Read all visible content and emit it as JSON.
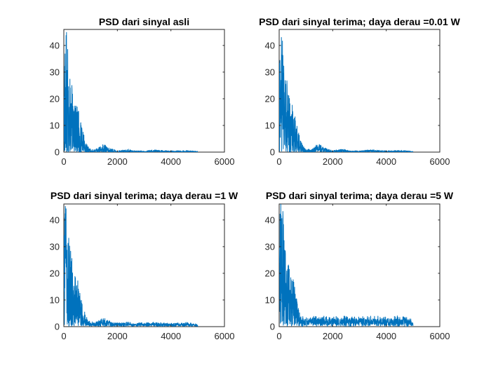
{
  "figure": {
    "background": "#ffffff",
    "line_color": "#0072bd"
  },
  "chart_data": [
    {
      "type": "line",
      "title": "PSD dari sinyal asli",
      "xlim": [
        0,
        6000
      ],
      "ylim": [
        0,
        46
      ],
      "xticks": [
        0,
        2000,
        4000,
        6000
      ],
      "yticks": [
        0,
        10,
        20,
        30,
        40
      ],
      "xlabel": "",
      "ylabel": "",
      "grid": false,
      "series": [
        {
          "x_range": [
            0,
            5000
          ],
          "envelope": [
            {
              "x": 0,
              "y": 34
            },
            {
              "x": 50,
              "y": 44
            },
            {
              "x": 100,
              "y": 45
            },
            {
              "x": 150,
              "y": 40
            },
            {
              "x": 200,
              "y": 30
            },
            {
              "x": 300,
              "y": 25
            },
            {
              "x": 400,
              "y": 20
            },
            {
              "x": 500,
              "y": 17
            },
            {
              "x": 600,
              "y": 13
            },
            {
              "x": 700,
              "y": 8
            },
            {
              "x": 800,
              "y": 4
            },
            {
              "x": 900,
              "y": 2
            },
            {
              "x": 1000,
              "y": 1
            },
            {
              "x": 1200,
              "y": 1
            },
            {
              "x": 1400,
              "y": 2.5
            },
            {
              "x": 1500,
              "y": 2.8
            },
            {
              "x": 1700,
              "y": 1.5
            },
            {
              "x": 2000,
              "y": 0.5
            },
            {
              "x": 2400,
              "y": 1
            },
            {
              "x": 2600,
              "y": 0.5
            },
            {
              "x": 3000,
              "y": 0.4
            },
            {
              "x": 3400,
              "y": 0.8
            },
            {
              "x": 4000,
              "y": 0.4
            },
            {
              "x": 4600,
              "y": 0.6
            },
            {
              "x": 5000,
              "y": 0.2
            }
          ],
          "noise_floor": 0.1
        }
      ]
    },
    {
      "type": "line",
      "title": "PSD dari sinyal terima; daya derau =0.01 W",
      "xlim": [
        0,
        6000
      ],
      "ylim": [
        0,
        46
      ],
      "xticks": [
        0,
        2000,
        4000,
        6000
      ],
      "yticks": [
        0,
        10,
        20,
        30,
        40
      ],
      "xlabel": "",
      "ylabel": "",
      "grid": false,
      "series": [
        {
          "x_range": [
            0,
            5000
          ],
          "envelope": [
            {
              "x": 0,
              "y": 34
            },
            {
              "x": 50,
              "y": 44
            },
            {
              "x": 100,
              "y": 45
            },
            {
              "x": 150,
              "y": 40
            },
            {
              "x": 200,
              "y": 30
            },
            {
              "x": 300,
              "y": 25
            },
            {
              "x": 400,
              "y": 20
            },
            {
              "x": 500,
              "y": 17
            },
            {
              "x": 600,
              "y": 13
            },
            {
              "x": 700,
              "y": 8
            },
            {
              "x": 800,
              "y": 4
            },
            {
              "x": 900,
              "y": 2
            },
            {
              "x": 1000,
              "y": 1
            },
            {
              "x": 1200,
              "y": 1
            },
            {
              "x": 1400,
              "y": 2.5
            },
            {
              "x": 1500,
              "y": 2.8
            },
            {
              "x": 1700,
              "y": 1.5
            },
            {
              "x": 2000,
              "y": 0.5
            },
            {
              "x": 2400,
              "y": 1
            },
            {
              "x": 2600,
              "y": 0.5
            },
            {
              "x": 3000,
              "y": 0.4
            },
            {
              "x": 3400,
              "y": 0.8
            },
            {
              "x": 4000,
              "y": 0.4
            },
            {
              "x": 4600,
              "y": 0.6
            },
            {
              "x": 5000,
              "y": 0.2
            }
          ],
          "noise_floor": 0.15
        }
      ]
    },
    {
      "type": "line",
      "title": "PSD dari sinyal terima; daya derau =1 W",
      "xlim": [
        0,
        6000
      ],
      "ylim": [
        0,
        46
      ],
      "xticks": [
        0,
        2000,
        4000,
        6000
      ],
      "yticks": [
        0,
        10,
        20,
        30,
        40
      ],
      "xlabel": "",
      "ylabel": "",
      "grid": false,
      "series": [
        {
          "x_range": [
            0,
            5000
          ],
          "envelope": [
            {
              "x": 0,
              "y": 34
            },
            {
              "x": 50,
              "y": 44
            },
            {
              "x": 100,
              "y": 45
            },
            {
              "x": 150,
              "y": 40
            },
            {
              "x": 200,
              "y": 30
            },
            {
              "x": 300,
              "y": 25
            },
            {
              "x": 400,
              "y": 20
            },
            {
              "x": 500,
              "y": 17
            },
            {
              "x": 600,
              "y": 13
            },
            {
              "x": 700,
              "y": 8
            },
            {
              "x": 800,
              "y": 4
            },
            {
              "x": 900,
              "y": 2.5
            },
            {
              "x": 1000,
              "y": 1.5
            },
            {
              "x": 1200,
              "y": 1.5
            },
            {
              "x": 1400,
              "y": 2.5
            },
            {
              "x": 1500,
              "y": 2.8
            },
            {
              "x": 1700,
              "y": 1.8
            },
            {
              "x": 2000,
              "y": 1
            },
            {
              "x": 2400,
              "y": 1.3
            },
            {
              "x": 2600,
              "y": 1
            },
            {
              "x": 3000,
              "y": 1
            },
            {
              "x": 3400,
              "y": 1.2
            },
            {
              "x": 4000,
              "y": 0.9
            },
            {
              "x": 4600,
              "y": 1.1
            },
            {
              "x": 5000,
              "y": 0.5
            }
          ],
          "noise_floor": 0.6
        }
      ]
    },
    {
      "type": "line",
      "title": "PSD dari sinyal terima; daya derau =5 W",
      "xlim": [
        0,
        6000
      ],
      "ylim": [
        0,
        46
      ],
      "xticks": [
        0,
        2000,
        4000,
        6000
      ],
      "yticks": [
        0,
        10,
        20,
        30,
        40
      ],
      "xlabel": "",
      "ylabel": "",
      "grid": false,
      "series": [
        {
          "x_range": [
            0,
            5000
          ],
          "envelope": [
            {
              "x": 0,
              "y": 34
            },
            {
              "x": 50,
              "y": 44
            },
            {
              "x": 100,
              "y": 45
            },
            {
              "x": 150,
              "y": 40
            },
            {
              "x": 200,
              "y": 30
            },
            {
              "x": 300,
              "y": 25
            },
            {
              "x": 400,
              "y": 20
            },
            {
              "x": 500,
              "y": 17
            },
            {
              "x": 600,
              "y": 13
            },
            {
              "x": 700,
              "y": 8
            },
            {
              "x": 800,
              "y": 4.5
            },
            {
              "x": 900,
              "y": 3
            },
            {
              "x": 1000,
              "y": 2.5
            },
            {
              "x": 1400,
              "y": 3
            },
            {
              "x": 2000,
              "y": 2.8
            },
            {
              "x": 3000,
              "y": 2.8
            },
            {
              "x": 4000,
              "y": 2.8
            },
            {
              "x": 4800,
              "y": 2.8
            },
            {
              "x": 4900,
              "y": 2.5
            },
            {
              "x": 5000,
              "y": 0.3
            }
          ],
          "noise_floor": 1.2
        }
      ]
    }
  ]
}
